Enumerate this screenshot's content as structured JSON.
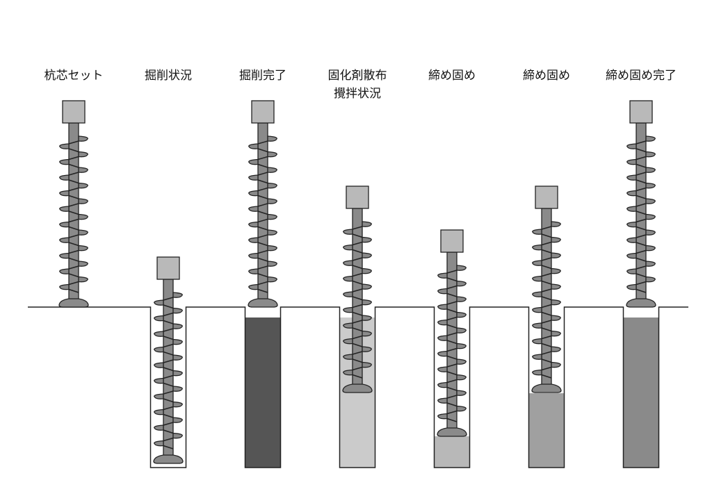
{
  "steps": [
    {
      "label": "杭芯セット",
      "label2": "",
      "hole": false,
      "auger_depth": "surface",
      "fill_color": null
    },
    {
      "label": "掘削状況",
      "label2": "",
      "hole": true,
      "auger_depth": "bottom",
      "fill_color": null
    },
    {
      "label": "掘削完了",
      "label2": "",
      "hole": true,
      "auger_depth": "surface",
      "fill_color": "#555555",
      "fill_level": "full"
    },
    {
      "label": "固化剤散布",
      "label2": "攪拌状況",
      "hole": true,
      "auger_depth": "middle",
      "fill_color": "#cbcbcb",
      "fill_level": "full"
    },
    {
      "label": "締め固め",
      "label2": "",
      "hole": true,
      "auger_depth": "lower",
      "fill_color": "#b8b8b8",
      "fill_level": "bottom"
    },
    {
      "label": "締め固め",
      "label2": "",
      "hole": true,
      "auger_depth": "middle",
      "fill_color": "#a0a0a0",
      "fill_level": "half"
    },
    {
      "label": "締め固め完了",
      "label2": "",
      "hole": true,
      "auger_depth": "surface",
      "fill_color": "#8a8a8a",
      "fill_level": "full"
    }
  ],
  "colors": {
    "auger_shaft": "#8a8a8a",
    "auger_cap": "#b9b9b9",
    "outline": "#222222"
  }
}
